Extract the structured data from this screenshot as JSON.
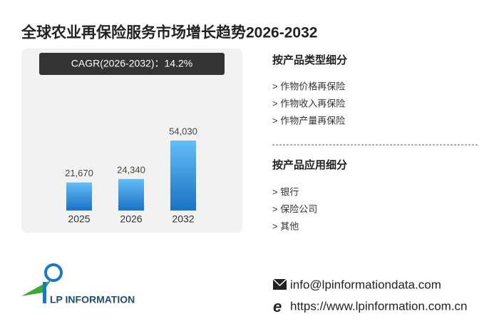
{
  "title": "全球农业再保险服务市场增长趋势2026-2032",
  "chart_data": {
    "type": "bar",
    "annotation": "CAGR(2026-2032)：14.2%",
    "categories": [
      "2025",
      "2026",
      "2032"
    ],
    "values": [
      21670,
      24340,
      54030
    ],
    "value_labels": [
      "21,670",
      "24,340",
      "54,030"
    ],
    "color": "#3a98e4"
  },
  "sections": [
    {
      "title": "按产品类型细分",
      "items": [
        "> 作物价格再保险",
        "> 作物收入再保险",
        "> 作物产量再保险"
      ]
    },
    {
      "title": "按产品应用细分",
      "items": [
        "> 银行",
        "> 保险公司",
        "> 其他"
      ]
    }
  ],
  "logo": "LP INFORMATION",
  "contact": {
    "email": "info@lpinformationdata.com",
    "website": "https://www.lpinformation.com.cn"
  }
}
